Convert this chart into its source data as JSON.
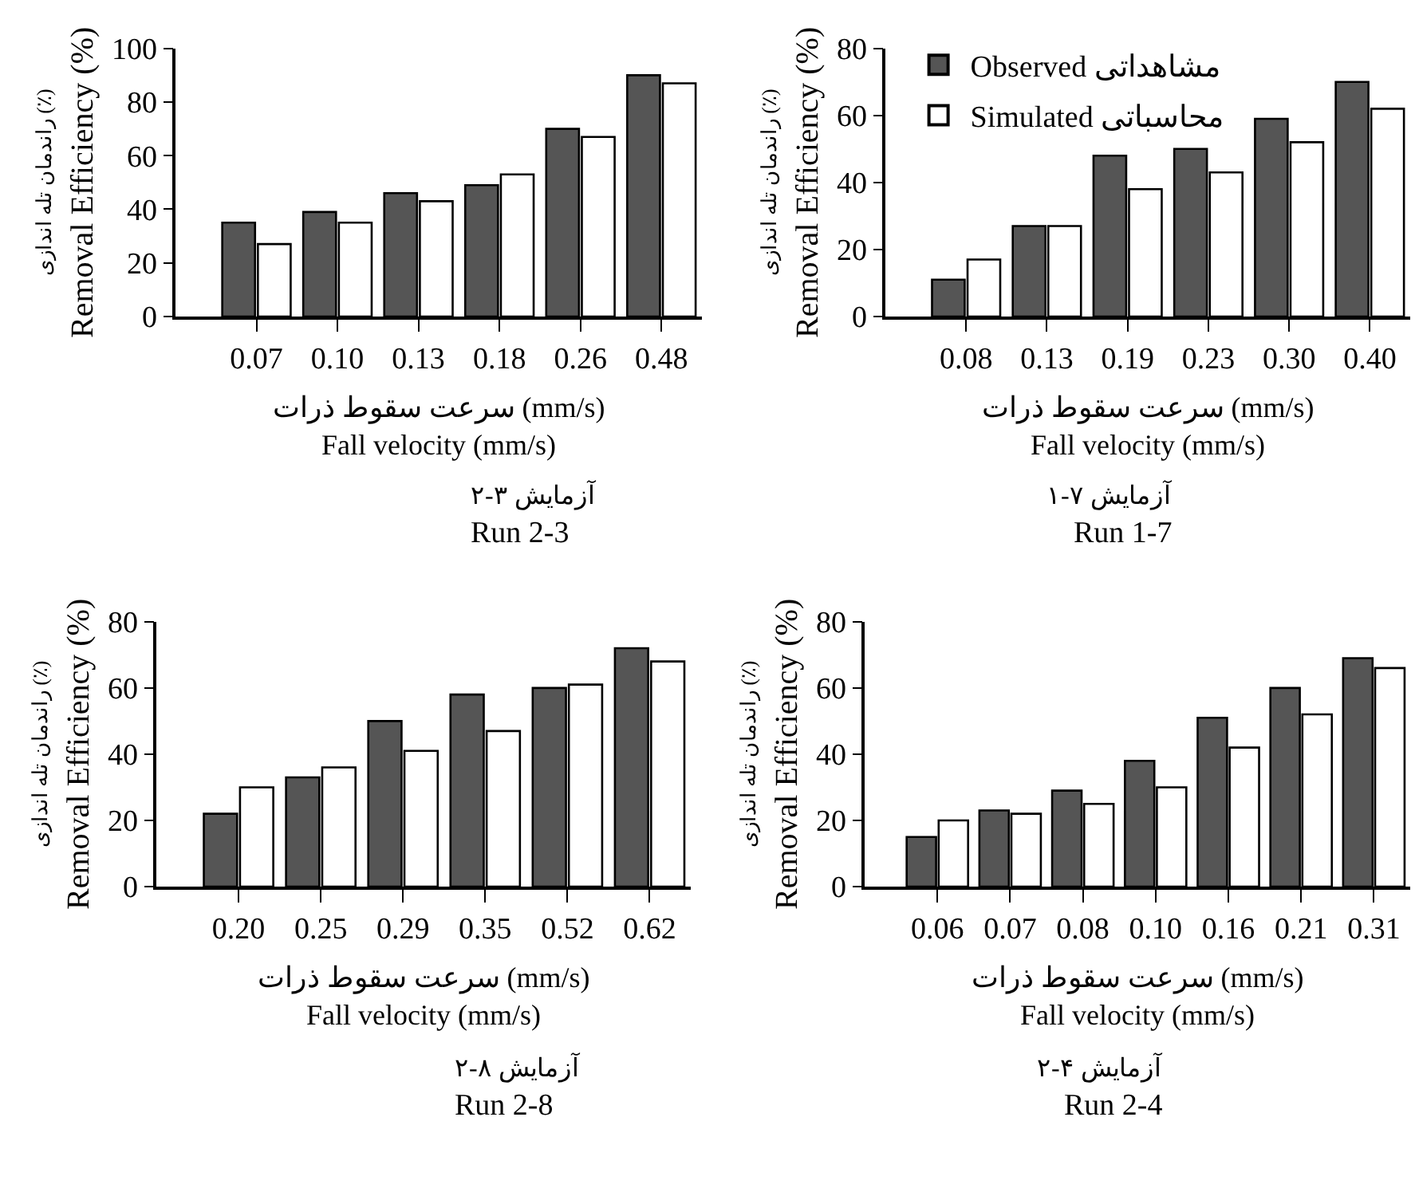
{
  "chart_data": [
    {
      "type": "bar",
      "title": "آزمایش ۳-۲",
      "subtitle": "Run 2-3",
      "xlabel": "سرعت سقوط ذرات (mm/s)\nFall velocity (mm/s)",
      "ylabel": "راندمان تله اندازی (٪)\nRemoval Efficiency (%)",
      "categories": [
        "0.07",
        "0.10",
        "0.13",
        "0.18",
        "0.26",
        "0.48"
      ],
      "series": [
        {
          "color": "#555555",
          "values": [
            35,
            39,
            46,
            49,
            70,
            90
          ]
        },
        {
          "color": "#ffffff",
          "values": [
            27,
            35,
            43,
            53,
            67,
            87
          ]
        }
      ],
      "ylim": [
        0,
        100
      ],
      "yticks": [
        0,
        20,
        40,
        60,
        80,
        100
      ]
    },
    {
      "type": "bar",
      "title": "آزمایش ۷-۱",
      "subtitle": "Run 1-7",
      "xlabel": "سرعت سقوط ذرات (mm/s)\nFall velocity (mm/s)",
      "ylabel": "راندمان تله اندازی (٪)\nRemoval Efficiency (%)",
      "categories": [
        "0.08",
        "0.13",
        "0.19",
        "0.23",
        "0.30",
        "0.40"
      ],
      "series": [
        {
          "name": "Observed مشاهداتی",
          "color": "#555555",
          "values": [
            11,
            27,
            48,
            50,
            59,
            70
          ]
        },
        {
          "name": "Simulated محاسباتی",
          "color": "#ffffff",
          "values": [
            17,
            27,
            38,
            43,
            52,
            62
          ]
        }
      ],
      "ylim": [
        0,
        80
      ],
      "yticks": [
        0,
        20,
        40,
        60,
        80
      ],
      "legend": "top left"
    },
    {
      "type": "bar",
      "title": "آزمایش ۸-۲",
      "subtitle": "Run 2-8",
      "xlabel": "سرعت سقوط ذرات (mm/s)\nFall velocity (mm/s)",
      "ylabel": "راندمان تله اندازی (٪)\nRemoval Efficiency (%)",
      "categories": [
        "0.20",
        "0.25",
        "0.29",
        "0.35",
        "0.52",
        "0.62"
      ],
      "series": [
        {
          "color": "#555555",
          "values": [
            22,
            33,
            50,
            58,
            60,
            72
          ]
        },
        {
          "color": "#ffffff",
          "values": [
            30,
            36,
            41,
            47,
            61,
            68
          ]
        }
      ],
      "ylim": [
        0,
        80
      ],
      "yticks": [
        0,
        20,
        40,
        60,
        80
      ]
    },
    {
      "type": "bar",
      "title": "آزمایش ۴-۲",
      "subtitle": "Run 2-4",
      "xlabel": "سرعت سقوط ذرات (mm/s)\nFall velocity (mm/s)",
      "ylabel": "راندمان تله اندازی (٪)\nRemoval Efficiency (%)",
      "categories": [
        "0.06",
        "0.07",
        "0.08",
        "0.10",
        "0.16",
        "0.21",
        "0.31"
      ],
      "series": [
        {
          "color": "#555555",
          "values": [
            15,
            23,
            29,
            38,
            51,
            60,
            69
          ]
        },
        {
          "color": "#ffffff",
          "values": [
            20,
            22,
            25,
            30,
            42,
            52,
            66
          ]
        }
      ],
      "ylim": [
        0,
        80
      ],
      "yticks": [
        0,
        20,
        40,
        60,
        80
      ]
    }
  ]
}
